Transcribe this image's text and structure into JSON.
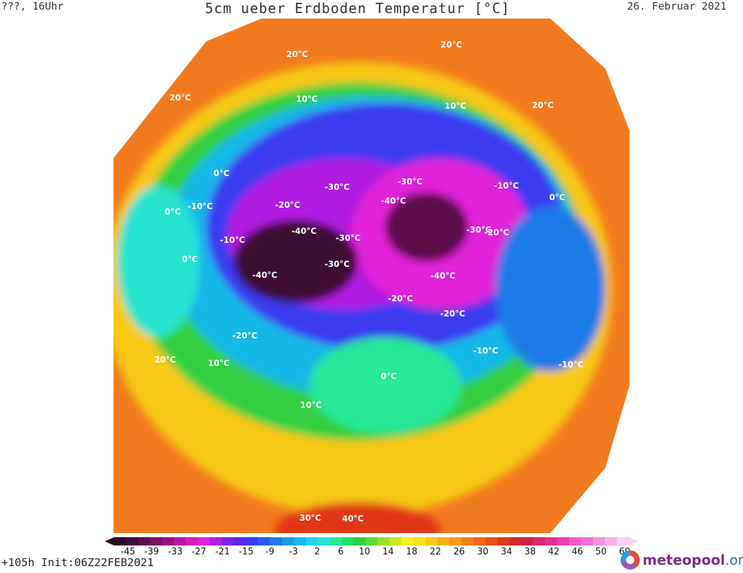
{
  "header": {
    "left": "???, 16Uhr",
    "title": "5cm ueber Erdboden Temperatur [°C]",
    "right": "26. Februar 2021"
  },
  "footer": {
    "run": "+105h Init:06Z22FEB2021"
  },
  "logo": {
    "part1": "meteo",
    "part2": "pool",
    "part3": ".org"
  },
  "legend": {
    "ticks": [
      "-45",
      "-39",
      "-33",
      "-27",
      "-21",
      "-15",
      "-9",
      "-3",
      "2",
      "6",
      "10",
      "14",
      "18",
      "22",
      "26",
      "30",
      "34",
      "38",
      "42",
      "46",
      "50",
      "60"
    ],
    "colors": [
      "#2a0a22",
      "#3d0f33",
      "#5a1048",
      "#7a1060",
      "#9a1080",
      "#b8169e",
      "#d41cbc",
      "#e020d8",
      "#b01ee0",
      "#8020e0",
      "#5a28e8",
      "#3a3af0",
      "#2a58f0",
      "#1e7ae8",
      "#1e9ee0",
      "#18b8e8",
      "#20d0f0",
      "#28e4d0",
      "#28e898",
      "#22e060",
      "#30d040",
      "#60d838",
      "#98e030",
      "#c8e828",
      "#f0f020",
      "#f8e018",
      "#f8c818",
      "#f8b018",
      "#f89818",
      "#f48018",
      "#f06818",
      "#e85018",
      "#e03818",
      "#d82828",
      "#d02048",
      "#d82870",
      "#e03090",
      "#e840b0",
      "#f058c8",
      "#f070d8",
      "#f490e0",
      "#f8b0e8",
      "#fcd0f0"
    ],
    "range": [
      -45,
      60
    ]
  },
  "isolines": [
    {
      "label": "20°C"
    },
    {
      "label": "20°C"
    },
    {
      "label": "20°C"
    },
    {
      "label": "20°C"
    },
    {
      "label": "20°C"
    },
    {
      "label": "10°C"
    },
    {
      "label": "10°C"
    },
    {
      "label": "10°C"
    },
    {
      "label": "10°C"
    },
    {
      "label": "0°C"
    },
    {
      "label": "0°C"
    },
    {
      "label": "0°C"
    },
    {
      "label": "0°C"
    },
    {
      "label": "0°C"
    },
    {
      "label": "-10°C"
    },
    {
      "label": "-10°C"
    },
    {
      "label": "-10°C"
    },
    {
      "label": "-10°C"
    },
    {
      "label": "-10°C"
    },
    {
      "label": "-20°C"
    },
    {
      "label": "-20°C"
    },
    {
      "label": "-20°C"
    },
    {
      "label": "-20°C"
    },
    {
      "label": "-20°C"
    },
    {
      "label": "-30°C"
    },
    {
      "label": "-30°C"
    },
    {
      "label": "-30°C"
    },
    {
      "label": "-30°C"
    },
    {
      "label": "-30°C"
    },
    {
      "label": "-40°C"
    },
    {
      "label": "-40°C"
    },
    {
      "label": "-40°C"
    },
    {
      "label": "-40°C"
    },
    {
      "label": "40°C"
    },
    {
      "label": "30°C"
    }
  ]
}
